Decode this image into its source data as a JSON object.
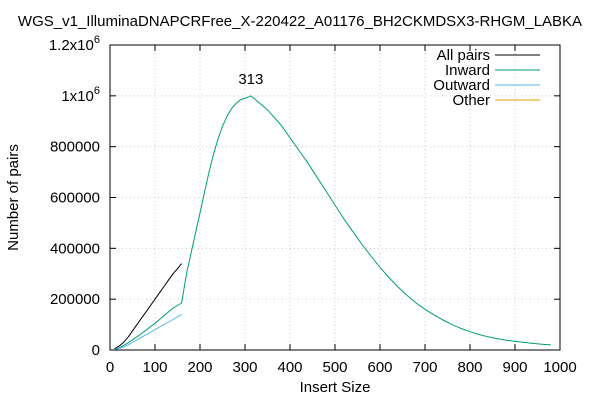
{
  "chart_data": {
    "type": "line",
    "title": "WGS_v1_IlluminaDNAPCRFree_X-220422_A01176_BH2CKMDSX3-RHGM_LABKA",
    "xlabel": "Insert Size",
    "ylabel": "Number of pairs",
    "xlim": [
      0,
      1000
    ],
    "ylim": [
      0,
      1200000
    ],
    "x_ticks": [
      {
        "value": 0,
        "label": "0"
      },
      {
        "value": 100,
        "label": "100"
      },
      {
        "value": 200,
        "label": "200"
      },
      {
        "value": 300,
        "label": "300"
      },
      {
        "value": 400,
        "label": "400"
      },
      {
        "value": 500,
        "label": "500"
      },
      {
        "value": 600,
        "label": "600"
      },
      {
        "value": 700,
        "label": "700"
      },
      {
        "value": 800,
        "label": "800"
      },
      {
        "value": 900,
        "label": "900"
      },
      {
        "value": 1000,
        "label": "1000"
      }
    ],
    "y_ticks": [
      {
        "value": 0,
        "label": "0",
        "sup": ""
      },
      {
        "value": 200000,
        "label": "200000",
        "sup": ""
      },
      {
        "value": 400000,
        "label": "400000",
        "sup": ""
      },
      {
        "value": 600000,
        "label": "600000",
        "sup": ""
      },
      {
        "value": 800000,
        "label": "800000",
        "sup": ""
      },
      {
        "value": 1000000,
        "label": "1x10",
        "sup": "6"
      },
      {
        "value": 1200000,
        "label": "1.2x10",
        "sup": "6"
      }
    ],
    "grid": true,
    "legend_position": "top-right",
    "annotation": {
      "text": "313",
      "x": 313,
      "y": 1030000
    },
    "series": [
      {
        "name": "All pairs",
        "color": "#000000",
        "x": [
          10,
          20,
          30,
          40,
          50,
          60,
          70,
          80,
          90,
          100,
          110,
          120,
          130,
          140,
          150,
          159
        ],
        "y": [
          5000,
          15000,
          30000,
          50000,
          75000,
          100000,
          125000,
          150000,
          175000,
          200000,
          225000,
          250000,
          275000,
          300000,
          320000,
          340000
        ]
      },
      {
        "name": "Inward",
        "color": "#009e73",
        "x": [
          10,
          20,
          30,
          40,
          50,
          60,
          70,
          80,
          90,
          100,
          110,
          120,
          130,
          140,
          150,
          159,
          170,
          180,
          190,
          200,
          210,
          220,
          230,
          240,
          250,
          260,
          270,
          280,
          290,
          300,
          313,
          320,
          330,
          340,
          350,
          360,
          370,
          380,
          390,
          400,
          420,
          440,
          460,
          480,
          500,
          520,
          540,
          560,
          580,
          600,
          620,
          640,
          660,
          680,
          700,
          720,
          740,
          760,
          780,
          800,
          820,
          840,
          860,
          880,
          900,
          920,
          940,
          960,
          980
        ],
        "y": [
          2000,
          8000,
          18000,
          28000,
          40000,
          52000,
          65000,
          78000,
          92000,
          105000,
          120000,
          135000,
          150000,
          165000,
          175000,
          185000,
          300000,
          380000,
          460000,
          540000,
          620000,
          700000,
          770000,
          830000,
          880000,
          920000,
          950000,
          970000,
          985000,
          990000,
          1000000,
          990000,
          975000,
          960000,
          945000,
          925000,
          905000,
          885000,
          860000,
          835000,
          785000,
          735000,
          680000,
          625000,
          570000,
          515000,
          465000,
          415000,
          370000,
          325000,
          285000,
          248000,
          215000,
          185000,
          160000,
          138000,
          118000,
          100000,
          85000,
          72000,
          61000,
          52000,
          45000,
          39000,
          34000,
          30000,
          26000,
          23000,
          20000
        ]
      },
      {
        "name": "Outward",
        "color": "#56b4e9",
        "x": [
          10,
          20,
          30,
          40,
          50,
          60,
          70,
          80,
          90,
          100,
          110,
          120,
          130,
          140,
          150,
          159
        ],
        "y": [
          2000,
          6000,
          12000,
          20000,
          30000,
          40000,
          50000,
          60000,
          70000,
          80000,
          90000,
          100000,
          110000,
          120000,
          130000,
          140000
        ]
      },
      {
        "name": "Other",
        "color": "#e69f00",
        "x": [
          0,
          980
        ],
        "y": [
          0,
          0
        ]
      }
    ]
  }
}
